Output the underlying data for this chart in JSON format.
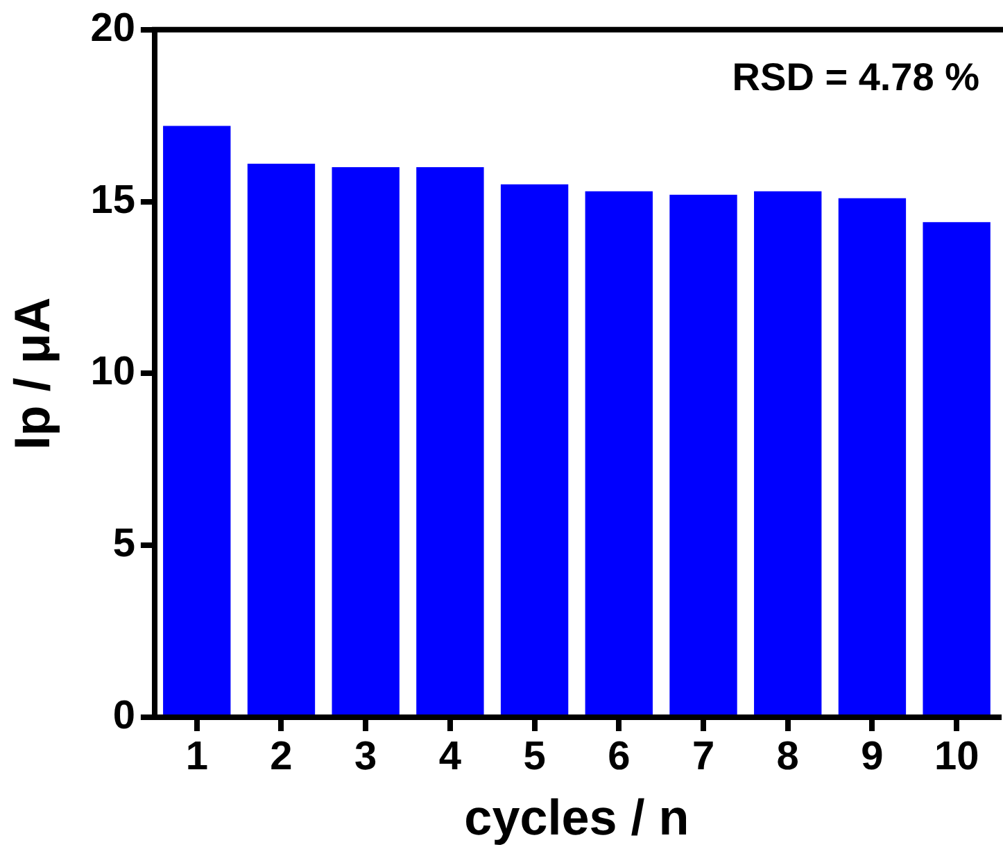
{
  "chart_data": {
    "type": "bar",
    "xlabel": "cycles / n",
    "ylabel": "Ip / μA",
    "categories": [
      "1",
      "2",
      "3",
      "4",
      "5",
      "6",
      "7",
      "8",
      "9",
      "10"
    ],
    "values": [
      17.2,
      16.1,
      16.0,
      16.0,
      15.5,
      15.3,
      15.2,
      15.3,
      15.1,
      14.4
    ],
    "color": "#0000ff",
    "ylim": [
      0,
      20
    ],
    "yticks": [
      0,
      5,
      10,
      15,
      20
    ],
    "grid": false,
    "legend": false,
    "annotations": [
      "RSD = 4.78 %"
    ]
  }
}
